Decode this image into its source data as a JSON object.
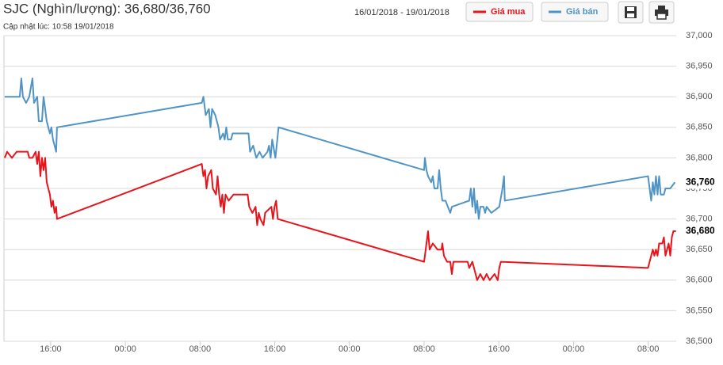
{
  "chart_data": {
    "type": "line",
    "title": "SJC (Nghìn/lượng): 36,680/36,760",
    "subtitle": "Cập nhật lúc: 10:58 19/01/2018",
    "date_range": "16/01/2018 - 19/01/2018",
    "xlim": [
      11,
      83
    ],
    "xticks": [
      {
        "value": 16,
        "label": "16:00"
      },
      {
        "value": 24,
        "label": "00:00"
      },
      {
        "value": 32,
        "label": "08:00"
      },
      {
        "value": 40,
        "label": "16:00"
      },
      {
        "value": 48,
        "label": "00:00"
      },
      {
        "value": 56,
        "label": "08:00"
      },
      {
        "value": 64,
        "label": "16:00"
      },
      {
        "value": 72,
        "label": "00:00"
      },
      {
        "value": 80,
        "label": "08:00"
      }
    ],
    "ylim": [
      36500,
      37000
    ],
    "yticks": [
      {
        "value": 36500,
        "label": "36,500"
      },
      {
        "value": 36550,
        "label": "36,550"
      },
      {
        "value": 36600,
        "label": "36,600"
      },
      {
        "value": 36650,
        "label": "36,650"
      },
      {
        "value": 36700,
        "label": "36,700"
      },
      {
        "value": 36750,
        "label": "36,750"
      },
      {
        "value": 36800,
        "label": "36,800"
      },
      {
        "value": 36850,
        "label": "36,850"
      },
      {
        "value": 36900,
        "label": "36,900"
      },
      {
        "value": 36950,
        "label": "36,950"
      },
      {
        "value": 37000,
        "label": "37,000"
      }
    ],
    "grid": true,
    "current_labels": [
      {
        "value": 36760,
        "label": "36,760"
      },
      {
        "value": 36680,
        "label": "36,680"
      }
    ],
    "series": [
      {
        "name": "Giá mua",
        "color": "#e8141b",
        "x": [
          11.08,
          11.34,
          11.85,
          12.36,
          13.54,
          13.71,
          14.05,
          14.39,
          14.56,
          14.73,
          14.9,
          15.07,
          15.24,
          15.41,
          15.58,
          15.75,
          15.92,
          16.08,
          16.25,
          16.42,
          16.59,
          16.68,
          32.19,
          32.36,
          32.53,
          32.69,
          32.86,
          33.2,
          33.37,
          33.71,
          33.88,
          34.05,
          34.22,
          34.39,
          34.56,
          34.73,
          35.07,
          35.58,
          37.1,
          37.27,
          37.61,
          37.95,
          38.12,
          38.29,
          38.46,
          38.8,
          38.97,
          39.64,
          39.81,
          39.98,
          40.15,
          40.32,
          56.0,
          56.25,
          56.42,
          56.59,
          56.93,
          57.44,
          57.86,
          57.95,
          58.12,
          58.46,
          58.8,
          58.97,
          59.14,
          60.66,
          60.83,
          61.17,
          61.51,
          61.68,
          62.02,
          62.36,
          62.69,
          63.03,
          63.54,
          63.88,
          64.05,
          64.22,
          79.98,
          80.32,
          80.49,
          80.66,
          80.83,
          81.0,
          81.17,
          81.51,
          81.68,
          81.85,
          82.19,
          82.36,
          82.53,
          82.69,
          82.97
        ],
        "values": [
          36800,
          36810,
          36800,
          36810,
          36810,
          36800,
          36800,
          36810,
          36790,
          36810,
          36770,
          36800,
          36780,
          36800,
          36760,
          36750,
          36740,
          36720,
          36730,
          36710,
          36720,
          36700,
          36790,
          36770,
          36780,
          36750,
          36770,
          36780,
          36750,
          36740,
          36770,
          36740,
          36720,
          36740,
          36710,
          36740,
          36730,
          36740,
          36740,
          36720,
          36710,
          36720,
          36690,
          36710,
          36700,
          36690,
          36710,
          36720,
          36700,
          36720,
          36730,
          36700,
          36630,
          36660,
          36680,
          36650,
          36660,
          36650,
          36650,
          36660,
          36640,
          36630,
          36630,
          36610,
          36630,
          36630,
          36620,
          36630,
          36610,
          36600,
          36610,
          36600,
          36610,
          36600,
          36610,
          36600,
          36620,
          36630,
          36620,
          36640,
          36650,
          36640,
          36650,
          36640,
          36660,
          36660,
          36670,
          36640,
          36660,
          36640,
          36670,
          36680,
          36680
        ]
      },
      {
        "name": "Giá bán",
        "color": "#4f94c4",
        "x": [
          11.08,
          12.69,
          12.86,
          13.03,
          13.37,
          13.71,
          14.05,
          14.22,
          14.56,
          14.73,
          15.07,
          15.24,
          15.58,
          15.92,
          16.08,
          16.25,
          16.59,
          16.68,
          32.19,
          32.36,
          32.61,
          32.95,
          33.12,
          33.29,
          33.63,
          33.97,
          34.14,
          34.47,
          34.64,
          34.81,
          34.98,
          35.32,
          35.49,
          37.19,
          37.36,
          37.69,
          38.03,
          38.37,
          38.71,
          39.22,
          39.39,
          39.56,
          39.73,
          40.07,
          40.41,
          56.0,
          56.08,
          56.25,
          56.42,
          56.76,
          56.93,
          57.1,
          57.44,
          57.61,
          57.78,
          57.95,
          58.29,
          58.8,
          58.97,
          60.83,
          61.0,
          61.17,
          61.34,
          61.51,
          61.68,
          61.85,
          62.02,
          62.36,
          62.53,
          62.69,
          63.2,
          64.05,
          64.39,
          64.56,
          64.64,
          79.98,
          80.15,
          80.32,
          80.49,
          80.66,
          80.83,
          81.0,
          81.17,
          81.34,
          81.68,
          81.85,
          82.36,
          82.86
        ],
        "values": [
          36900,
          36900,
          36930,
          36900,
          36890,
          36900,
          36930,
          36890,
          36900,
          36860,
          36860,
          36900,
          36860,
          36840,
          36850,
          36830,
          36810,
          36850,
          36890,
          36900,
          36870,
          36880,
          36850,
          36880,
          36870,
          36850,
          36830,
          36840,
          36830,
          36850,
          36830,
          36830,
          36840,
          36840,
          36810,
          36820,
          36800,
          36810,
          36800,
          36810,
          36820,
          36800,
          36830,
          36800,
          36850,
          36780,
          36800,
          36780,
          36770,
          36760,
          36770,
          36750,
          36750,
          36780,
          36750,
          36730,
          36730,
          36710,
          36720,
          36730,
          36750,
          36720,
          36750,
          36710,
          36730,
          36700,
          36720,
          36720,
          36710,
          36720,
          36710,
          36720,
          36750,
          36770,
          36730,
          36770,
          36750,
          36730,
          36760,
          36740,
          36770,
          36740,
          36770,
          36740,
          36740,
          36750,
          36750,
          36760
        ]
      }
    ]
  }
}
